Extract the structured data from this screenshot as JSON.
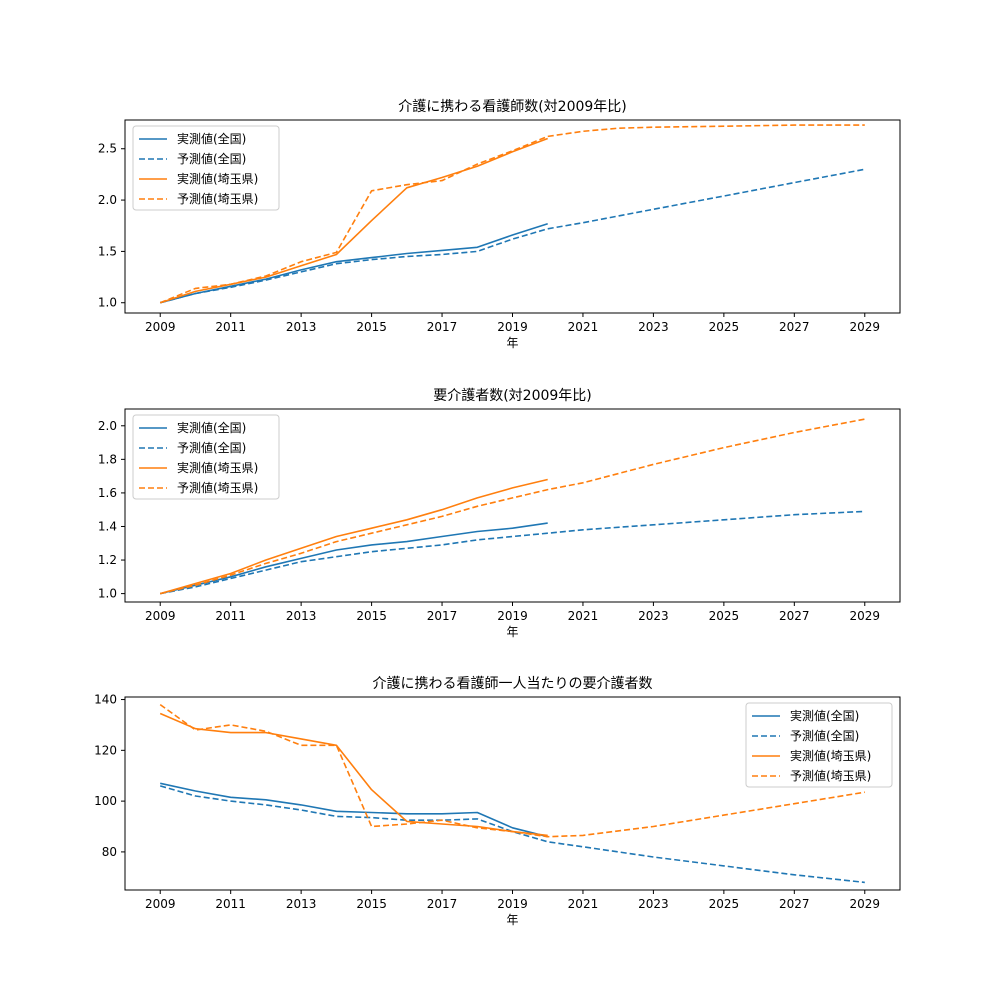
{
  "chart_data": [
    {
      "type": "line",
      "title": "介護に携わる看護師数(対2009年比)",
      "xlabel": "年",
      "ylabel": "",
      "xlim": [
        2008,
        2030
      ],
      "ylim": [
        0.9,
        2.78
      ],
      "xticks": [
        2009,
        2011,
        2013,
        2015,
        2017,
        2019,
        2021,
        2023,
        2025,
        2027,
        2029
      ],
      "yticks": [
        1.0,
        1.5,
        2.0,
        2.5
      ],
      "ytick_decimals": 1,
      "legend": "upper-left",
      "series": [
        {
          "name": "実測値(全国)",
          "style": "solid",
          "color": "#1f77b4",
          "x": [
            2009,
            2010,
            2011,
            2012,
            2013,
            2014,
            2015,
            2016,
            2017,
            2018,
            2019,
            2020
          ],
          "y": [
            1.0,
            1.09,
            1.16,
            1.23,
            1.32,
            1.4,
            1.44,
            1.48,
            1.51,
            1.54,
            1.66,
            1.77
          ]
        },
        {
          "name": "予測値(全国)",
          "style": "dashed",
          "color": "#1f77b4",
          "x": [
            2009,
            2010,
            2011,
            2012,
            2013,
            2014,
            2015,
            2016,
            2017,
            2018,
            2019,
            2020,
            2021,
            2023,
            2025,
            2027,
            2029
          ],
          "y": [
            1.0,
            1.09,
            1.15,
            1.22,
            1.3,
            1.38,
            1.42,
            1.45,
            1.47,
            1.5,
            1.62,
            1.72,
            1.78,
            1.91,
            2.04,
            2.17,
            2.3
          ]
        },
        {
          "name": "実測値(埼玉県)",
          "style": "solid",
          "color": "#ff7f0e",
          "x": [
            2009,
            2010,
            2011,
            2012,
            2013,
            2014,
            2015,
            2016,
            2017,
            2018,
            2019,
            2020
          ],
          "y": [
            1.0,
            1.11,
            1.18,
            1.25,
            1.36,
            1.47,
            1.8,
            2.12,
            2.22,
            2.33,
            2.47,
            2.6
          ]
        },
        {
          "name": "予測値(埼玉県)",
          "style": "dashed",
          "color": "#ff7f0e",
          "x": [
            2009,
            2010,
            2011,
            2012,
            2013,
            2014,
            2015,
            2016,
            2017,
            2018,
            2019,
            2020,
            2021,
            2022,
            2023,
            2025,
            2027,
            2029
          ],
          "y": [
            1.0,
            1.14,
            1.18,
            1.26,
            1.4,
            1.49,
            2.09,
            2.15,
            2.19,
            2.35,
            2.48,
            2.62,
            2.67,
            2.7,
            2.71,
            2.72,
            2.73,
            2.73
          ]
        }
      ]
    },
    {
      "type": "line",
      "title": "要介護者数(対2009年比)",
      "xlabel": "年",
      "ylabel": "",
      "xlim": [
        2008,
        2030
      ],
      "ylim": [
        0.95,
        2.1
      ],
      "xticks": [
        2009,
        2011,
        2013,
        2015,
        2017,
        2019,
        2021,
        2023,
        2025,
        2027,
        2029
      ],
      "yticks": [
        1.0,
        1.2,
        1.4,
        1.6,
        1.8,
        2.0
      ],
      "ytick_decimals": 1,
      "legend": "upper-left",
      "series": [
        {
          "name": "実測値(全国)",
          "style": "solid",
          "color": "#1f77b4",
          "x": [
            2009,
            2010,
            2011,
            2012,
            2013,
            2014,
            2015,
            2016,
            2017,
            2018,
            2019,
            2020
          ],
          "y": [
            1.0,
            1.05,
            1.1,
            1.16,
            1.21,
            1.26,
            1.29,
            1.31,
            1.34,
            1.37,
            1.39,
            1.42
          ]
        },
        {
          "name": "予測値(全国)",
          "style": "dashed",
          "color": "#1f77b4",
          "x": [
            2009,
            2010,
            2011,
            2012,
            2013,
            2014,
            2015,
            2016,
            2017,
            2018,
            2019,
            2020,
            2021,
            2023,
            2025,
            2027,
            2029
          ],
          "y": [
            1.0,
            1.04,
            1.09,
            1.14,
            1.19,
            1.22,
            1.25,
            1.27,
            1.29,
            1.32,
            1.34,
            1.36,
            1.38,
            1.41,
            1.44,
            1.47,
            1.49
          ]
        },
        {
          "name": "実測値(埼玉県)",
          "style": "solid",
          "color": "#ff7f0e",
          "x": [
            2009,
            2010,
            2011,
            2012,
            2013,
            2014,
            2015,
            2016,
            2017,
            2018,
            2019,
            2020
          ],
          "y": [
            1.0,
            1.06,
            1.12,
            1.2,
            1.27,
            1.34,
            1.39,
            1.44,
            1.5,
            1.57,
            1.63,
            1.68
          ]
        },
        {
          "name": "予測値(埼玉県)",
          "style": "dashed",
          "color": "#ff7f0e",
          "x": [
            2009,
            2010,
            2011,
            2012,
            2013,
            2014,
            2015,
            2016,
            2017,
            2018,
            2019,
            2020,
            2021,
            2023,
            2025,
            2027,
            2029
          ],
          "y": [
            1.0,
            1.05,
            1.11,
            1.18,
            1.24,
            1.31,
            1.36,
            1.41,
            1.46,
            1.52,
            1.57,
            1.62,
            1.66,
            1.77,
            1.87,
            1.96,
            2.04
          ]
        }
      ]
    },
    {
      "type": "line",
      "title": "介護に携わる看護師一人当たりの要介護者数",
      "xlabel": "年",
      "ylabel": "",
      "xlim": [
        2008,
        2030
      ],
      "ylim": [
        65,
        141
      ],
      "xticks": [
        2009,
        2011,
        2013,
        2015,
        2017,
        2019,
        2021,
        2023,
        2025,
        2027,
        2029
      ],
      "yticks": [
        80,
        100,
        120,
        140
      ],
      "ytick_decimals": 0,
      "legend": "upper-right",
      "series": [
        {
          "name": "実測値(全国)",
          "style": "solid",
          "color": "#1f77b4",
          "x": [
            2009,
            2010,
            2011,
            2012,
            2013,
            2014,
            2015,
            2016,
            2017,
            2018,
            2019,
            2020
          ],
          "y": [
            107,
            104,
            101.5,
            100.5,
            98.5,
            96,
            95.5,
            95,
            95,
            95.5,
            89.5,
            86
          ]
        },
        {
          "name": "予測値(全国)",
          "style": "dashed",
          "color": "#1f77b4",
          "x": [
            2009,
            2010,
            2011,
            2012,
            2013,
            2014,
            2015,
            2016,
            2017,
            2018,
            2019,
            2020,
            2021,
            2023,
            2025,
            2027,
            2029
          ],
          "y": [
            106,
            102,
            100,
            98.5,
            96.5,
            94,
            93.5,
            92.5,
            92.5,
            93,
            88,
            84,
            82,
            78,
            74.5,
            71,
            68
          ]
        },
        {
          "name": "実測値(埼玉県)",
          "style": "solid",
          "color": "#ff7f0e",
          "x": [
            2009,
            2010,
            2011,
            2012,
            2013,
            2014,
            2015,
            2016,
            2017,
            2018,
            2019,
            2020
          ],
          "y": [
            134.5,
            128.5,
            127,
            127,
            124.5,
            122,
            104.5,
            92,
            91,
            90,
            88,
            86.5
          ]
        },
        {
          "name": "予測値(埼玉県)",
          "style": "dashed",
          "color": "#ff7f0e",
          "x": [
            2009,
            2010,
            2011,
            2012,
            2013,
            2014,
            2015,
            2016,
            2017,
            2018,
            2019,
            2020,
            2021,
            2023,
            2025,
            2027,
            2029
          ],
          "y": [
            138,
            128,
            130,
            127.5,
            122,
            122,
            90,
            91,
            92.5,
            89.5,
            88,
            86,
            86.5,
            90,
            94.5,
            99,
            103.5
          ]
        }
      ]
    }
  ]
}
